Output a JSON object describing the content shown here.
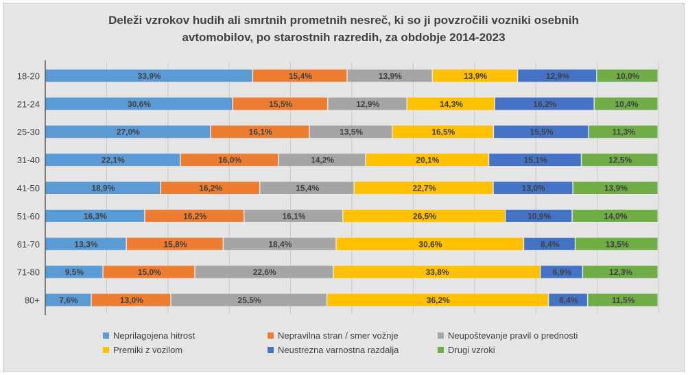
{
  "chart_data": {
    "type": "bar",
    "orientation": "horizontal-stacked-100",
    "title": "Deleži vzrokov hudih ali smrtnih prometnih nesreč, ki so ji povzročili vozniki osebnih avtomobilov, po starostnih razredih, za obdobje 2014-2023",
    "title_lines": [
      "Deleži vzrokov hudih ali smrtnih prometnih nesreč, ki so ji povzročili vozniki osebnih",
      "avtomobilov, po starostnih razredih, za obdobje 2014-2023"
    ],
    "categories": [
      "18-20",
      "21-24",
      "25-30",
      "31-40",
      "41-50",
      "51-60",
      "61-70",
      "71-80",
      "80+"
    ],
    "xlim": [
      0,
      100
    ],
    "grid": true,
    "legend_position": "bottom",
    "series": [
      {
        "name": "Neprilagojena hitrost",
        "color": "#5b9bd5",
        "values": [
          33.9,
          30.6,
          27.0,
          22.1,
          18.9,
          16.3,
          13.3,
          9.5,
          7.6
        ],
        "labels": [
          "33,9%",
          "30,6%",
          "27,0%",
          "22,1%",
          "18,9%",
          "16,3%",
          "13,3%",
          "9,5%",
          "7,6%"
        ]
      },
      {
        "name": "Nepravilna stran / smer vožnje",
        "color": "#ed7d31",
        "values": [
          15.4,
          15.5,
          16.1,
          16.0,
          16.2,
          16.2,
          15.8,
          15.0,
          13.0
        ],
        "labels": [
          "15,4%",
          "15,5%",
          "16,1%",
          "16,0%",
          "16,2%",
          "16,2%",
          "15,8%",
          "15,0%",
          "13,0%"
        ]
      },
      {
        "name": "Neupoštevanje pravil o prednosti",
        "color": "#a5a5a5",
        "values": [
          13.9,
          12.9,
          13.5,
          14.2,
          15.4,
          16.1,
          18.4,
          22.6,
          25.5
        ],
        "labels": [
          "13,9%",
          "12,9%",
          "13,5%",
          "14,2%",
          "15,4%",
          "16,1%",
          "18,4%",
          "22,6%",
          "25,5%"
        ]
      },
      {
        "name": "Premiki z vozilom",
        "color": "#ffc000",
        "values": [
          13.9,
          14.3,
          16.5,
          20.1,
          22.7,
          26.5,
          30.6,
          33.8,
          36.2
        ],
        "labels": [
          "13,9%",
          "14,3%",
          "16,5%",
          "20,1%",
          "22,7%",
          "26,5%",
          "30,6%",
          "33,8%",
          "36,2%"
        ]
      },
      {
        "name": "Neustrezna varnostna razdalja",
        "color": "#4472c4",
        "values": [
          12.9,
          16.2,
          15.5,
          15.1,
          13.0,
          10.9,
          8.4,
          6.9,
          6.4
        ],
        "labels": [
          "12,9%",
          "16,2%",
          "15,5%",
          "15,1%",
          "13,0%",
          "10,9%",
          "8,4%",
          "6,9%",
          "6,4%"
        ]
      },
      {
        "name": "Drugi vzroki",
        "color": "#70ad47",
        "values": [
          10.0,
          10.4,
          11.3,
          12.5,
          13.9,
          14.0,
          13.5,
          12.3,
          11.5
        ],
        "labels": [
          "10,0%",
          "10,4%",
          "11,3%",
          "12,5%",
          "13,9%",
          "14,0%",
          "13,5%",
          "12,3%",
          "11,5%"
        ]
      }
    ]
  }
}
